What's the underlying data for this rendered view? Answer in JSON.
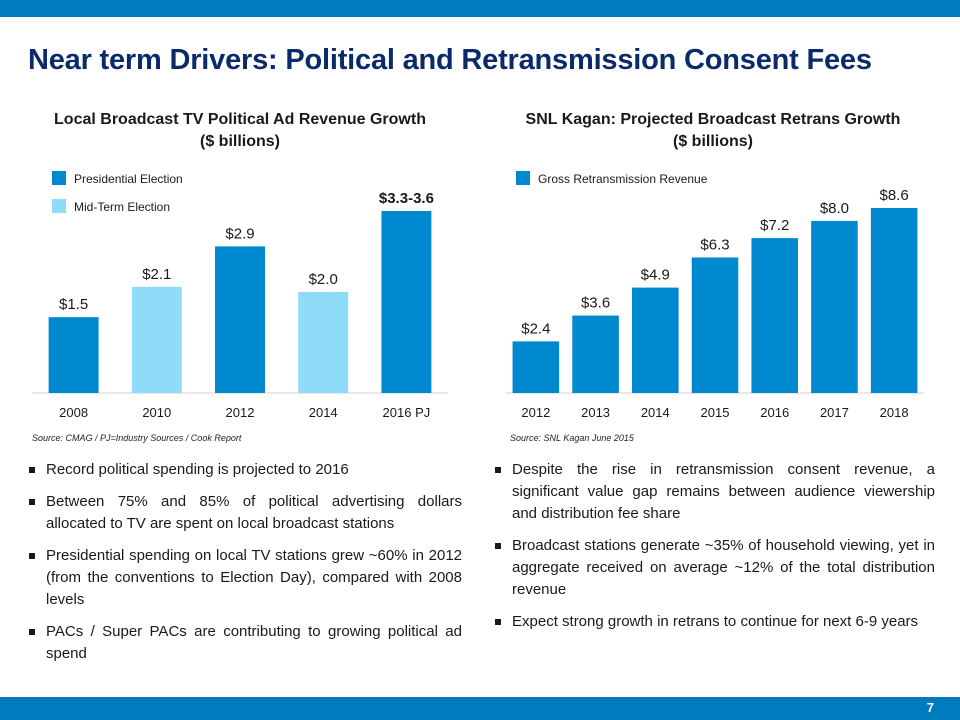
{
  "page": {
    "title": "Near term Drivers: Political and Retransmission Consent Fees",
    "page_number": "7"
  },
  "colors": {
    "bar_dark": "#0089cf",
    "bar_light": "#8fdcfa",
    "band": "#007bbd",
    "title": "#0b2a6b"
  },
  "left_chart": {
    "title_line1": "Local Broadcast TV Political Ad Revenue Growth",
    "title_line2": "($ billions)",
    "source": "Source: CMAG / PJ=Industry Sources / Cook Report"
  },
  "right_chart": {
    "title_line1": "SNL Kagan: Projected Broadcast Retrans Growth",
    "title_line2": "($ billions)",
    "source": "Source: SNL Kagan June 2015"
  },
  "chart_data": [
    {
      "type": "bar",
      "title": "Local Broadcast TV Political Ad Revenue Growth ($ billions)",
      "categories": [
        "2008",
        "2010",
        "2012",
        "2014",
        "2016 PJ"
      ],
      "values": [
        1.5,
        2.1,
        2.9,
        2.0,
        3.6
      ],
      "labels": [
        "$1.5",
        "$2.1",
        "$2.9",
        "$2.0",
        "$3.3-3.6"
      ],
      "series_of_bar": [
        "Presidential Election",
        "Mid-Term Election",
        "Presidential Election",
        "Mid-Term Election",
        "Presidential Election"
      ],
      "legend": [
        {
          "name": "Presidential Election",
          "color": "#0089cf"
        },
        {
          "name": "Mid-Term Election",
          "color": "#8fdcfa"
        }
      ],
      "legend_position": "top-left",
      "ylim": [
        0,
        3.6
      ],
      "xlabel": "",
      "ylabel": ""
    },
    {
      "type": "bar",
      "title": "SNL Kagan: Projected Broadcast Retrans Growth ($ billions)",
      "categories": [
        "2012",
        "2013",
        "2014",
        "2015",
        "2016",
        "2017",
        "2018"
      ],
      "values": [
        2.4,
        3.6,
        4.9,
        6.3,
        7.2,
        8.0,
        8.6
      ],
      "labels": [
        "$2.4",
        "$3.6",
        "$4.9",
        "$6.3",
        "$7.2",
        "$8.0",
        "$8.6"
      ],
      "legend": [
        {
          "name": "Gross Retransmission Revenue",
          "color": "#0089cf"
        }
      ],
      "legend_position": "top-left",
      "ylim": [
        0,
        8.6
      ],
      "xlabel": "",
      "ylabel": ""
    }
  ],
  "left_bullets": [
    "Record political spending is projected to 2016",
    "Between 75% and 85% of political advertising dollars allocated to TV are spent on local broadcast stations",
    "Presidential spending on local TV stations grew ~60% in 2012 (from the conventions to Election Day), compared with 2008 levels",
    "PACs / Super PACs are contributing to growing political ad spend"
  ],
  "right_bullets": [
    "Despite the rise in retransmission consent revenue, a significant value gap remains between audience viewership and distribution fee share",
    "Broadcast stations generate ~35% of household viewing, yet in aggregate received on average ~12% of the total distribution revenue",
    "Expect strong growth in retrans to continue for next 6-9 years"
  ]
}
